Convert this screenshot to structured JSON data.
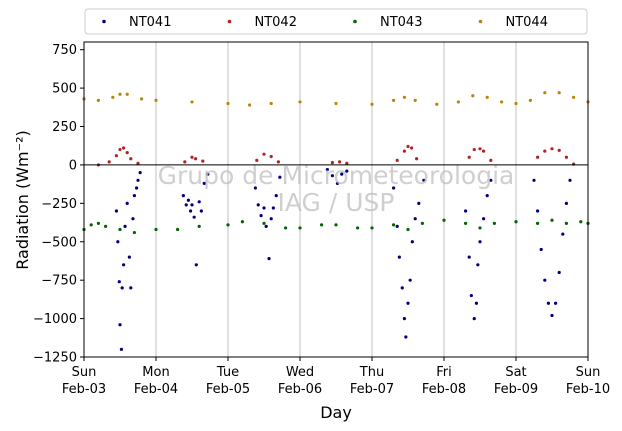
{
  "chart_data": {
    "type": "scatter",
    "title": "",
    "xlabel": "Day",
    "ylabel": "Radiation (Wm⁻²)",
    "ylim": [
      -1250,
      800
    ],
    "xlim": [
      0,
      7
    ],
    "yticks": [
      -1250,
      -1000,
      -750,
      -500,
      -250,
      0,
      250,
      500,
      750
    ],
    "xticks": [
      {
        "day": "Sun",
        "date": "Feb-03",
        "x": 0
      },
      {
        "day": "Mon",
        "date": "Feb-04",
        "x": 1
      },
      {
        "day": "Tue",
        "date": "Feb-05",
        "x": 2
      },
      {
        "day": "Wed",
        "date": "Feb-06",
        "x": 3
      },
      {
        "day": "Thu",
        "date": "Feb-07",
        "x": 4
      },
      {
        "day": "Fri",
        "date": "Feb-08",
        "x": 5
      },
      {
        "day": "Sat",
        "date": "Feb-09",
        "x": 6
      },
      {
        "day": "Sun",
        "date": "Feb-10",
        "x": 7
      }
    ],
    "grid": "vertical",
    "zero_line": true,
    "legend_position": "top (above plot)",
    "watermark": [
      "Grupo de Micrometeorologia",
      "IAG / USP"
    ],
    "series": [
      {
        "name": "NT041",
        "color": "#00007f",
        "points": [
          [
            0.45,
            -300
          ],
          [
            0.47,
            -500
          ],
          [
            0.49,
            -760
          ],
          [
            0.5,
            -1040
          ],
          [
            0.52,
            -1200
          ],
          [
            0.53,
            -800
          ],
          [
            0.55,
            -650
          ],
          [
            0.57,
            -400
          ],
          [
            0.6,
            -250
          ],
          [
            0.63,
            -600
          ],
          [
            0.65,
            -800
          ],
          [
            0.68,
            -350
          ],
          [
            0.7,
            -200
          ],
          [
            0.73,
            -150
          ],
          [
            0.75,
            -100
          ],
          [
            0.78,
            -50
          ],
          [
            1.38,
            -200
          ],
          [
            1.42,
            -260
          ],
          [
            1.45,
            -230
          ],
          [
            1.48,
            -300
          ],
          [
            1.5,
            -260
          ],
          [
            1.53,
            -340
          ],
          [
            1.56,
            -650
          ],
          [
            1.6,
            -240
          ],
          [
            1.63,
            -300
          ],
          [
            1.67,
            -120
          ],
          [
            1.72,
            -60
          ],
          [
            2.38,
            -150
          ],
          [
            2.42,
            -260
          ],
          [
            2.46,
            -330
          ],
          [
            2.5,
            -280
          ],
          [
            2.53,
            -400
          ],
          [
            2.57,
            -610
          ],
          [
            2.6,
            -350
          ],
          [
            2.63,
            -280
          ],
          [
            2.67,
            -200
          ],
          [
            2.72,
            -80
          ],
          [
            3.38,
            -30
          ],
          [
            3.45,
            -70
          ],
          [
            3.52,
            -120
          ],
          [
            3.58,
            -60
          ],
          [
            3.65,
            -40
          ],
          [
            4.3,
            -150
          ],
          [
            4.35,
            -400
          ],
          [
            4.38,
            -600
          ],
          [
            4.42,
            -800
          ],
          [
            4.45,
            -1000
          ],
          [
            4.47,
            -1120
          ],
          [
            4.5,
            -900
          ],
          [
            4.53,
            -750
          ],
          [
            4.56,
            -500
          ],
          [
            4.6,
            -350
          ],
          [
            4.65,
            -250
          ],
          [
            4.72,
            -100
          ],
          [
            5.3,
            -300
          ],
          [
            5.35,
            -600
          ],
          [
            5.38,
            -850
          ],
          [
            5.42,
            -1000
          ],
          [
            5.45,
            -900
          ],
          [
            5.47,
            -650
          ],
          [
            5.5,
            -500
          ],
          [
            5.55,
            -350
          ],
          [
            5.6,
            -200
          ],
          [
            5.65,
            -100
          ],
          [
            6.25,
            -100
          ],
          [
            6.3,
            -300
          ],
          [
            6.35,
            -550
          ],
          [
            6.4,
            -750
          ],
          [
            6.45,
            -900
          ],
          [
            6.5,
            -980
          ],
          [
            6.55,
            -900
          ],
          [
            6.6,
            -700
          ],
          [
            6.65,
            -450
          ],
          [
            6.7,
            -250
          ],
          [
            6.75,
            -100
          ]
        ]
      },
      {
        "name": "NT042",
        "color": "#b22222",
        "points": [
          [
            0.2,
            0
          ],
          [
            0.35,
            20
          ],
          [
            0.45,
            60
          ],
          [
            0.5,
            100
          ],
          [
            0.55,
            110
          ],
          [
            0.6,
            80
          ],
          [
            0.65,
            40
          ],
          [
            0.75,
            10
          ],
          [
            1.4,
            20
          ],
          [
            1.5,
            50
          ],
          [
            1.55,
            40
          ],
          [
            1.65,
            25
          ],
          [
            2.4,
            30
          ],
          [
            2.5,
            70
          ],
          [
            2.6,
            55
          ],
          [
            2.7,
            20
          ],
          [
            3.45,
            15
          ],
          [
            3.55,
            20
          ],
          [
            3.65,
            10
          ],
          [
            4.35,
            30
          ],
          [
            4.45,
            90
          ],
          [
            4.5,
            120
          ],
          [
            4.55,
            110
          ],
          [
            4.62,
            40
          ],
          [
            5.35,
            50
          ],
          [
            5.42,
            100
          ],
          [
            5.5,
            105
          ],
          [
            5.55,
            90
          ],
          [
            5.65,
            30
          ],
          [
            6.3,
            50
          ],
          [
            6.4,
            90
          ],
          [
            6.5,
            105
          ],
          [
            6.6,
            95
          ],
          [
            6.7,
            50
          ],
          [
            6.8,
            5
          ]
        ]
      },
      {
        "name": "NT043",
        "color": "#006400",
        "points": [
          [
            0,
            -420
          ],
          [
            0.1,
            -390
          ],
          [
            0.2,
            -380
          ],
          [
            0.3,
            -400
          ],
          [
            0.5,
            -420
          ],
          [
            0.7,
            -440
          ],
          [
            1.0,
            -420
          ],
          [
            1.3,
            -420
          ],
          [
            1.6,
            -400
          ],
          [
            2.0,
            -390
          ],
          [
            2.2,
            -370
          ],
          [
            2.5,
            -380
          ],
          [
            2.8,
            -410
          ],
          [
            3.0,
            -410
          ],
          [
            3.3,
            -390
          ],
          [
            3.5,
            -390
          ],
          [
            3.8,
            -410
          ],
          [
            4.0,
            -410
          ],
          [
            4.3,
            -390
          ],
          [
            4.5,
            -420
          ],
          [
            4.7,
            -380
          ],
          [
            5.0,
            -360
          ],
          [
            5.3,
            -380
          ],
          [
            5.5,
            -410
          ],
          [
            5.7,
            -380
          ],
          [
            6.0,
            -370
          ],
          [
            6.3,
            -380
          ],
          [
            6.5,
            -360
          ],
          [
            6.7,
            -380
          ],
          [
            6.9,
            -370
          ],
          [
            7.0,
            -380
          ]
        ]
      },
      {
        "name": "NT044",
        "color": "#b8860b",
        "points": [
          [
            0,
            430
          ],
          [
            0.2,
            420
          ],
          [
            0.4,
            440
          ],
          [
            0.5,
            460
          ],
          [
            0.6,
            460
          ],
          [
            0.8,
            430
          ],
          [
            1.0,
            420
          ],
          [
            1.5,
            410
          ],
          [
            2.0,
            400
          ],
          [
            2.3,
            390
          ],
          [
            2.6,
            400
          ],
          [
            3.0,
            410
          ],
          [
            3.5,
            400
          ],
          [
            4.0,
            395
          ],
          [
            4.3,
            420
          ],
          [
            4.45,
            440
          ],
          [
            4.6,
            420
          ],
          [
            4.9,
            395
          ],
          [
            5.2,
            410
          ],
          [
            5.4,
            450
          ],
          [
            5.6,
            440
          ],
          [
            5.8,
            410
          ],
          [
            6.0,
            400
          ],
          [
            6.2,
            420
          ],
          [
            6.4,
            470
          ],
          [
            6.6,
            470
          ],
          [
            6.8,
            440
          ],
          [
            7.0,
            410
          ]
        ]
      }
    ]
  }
}
